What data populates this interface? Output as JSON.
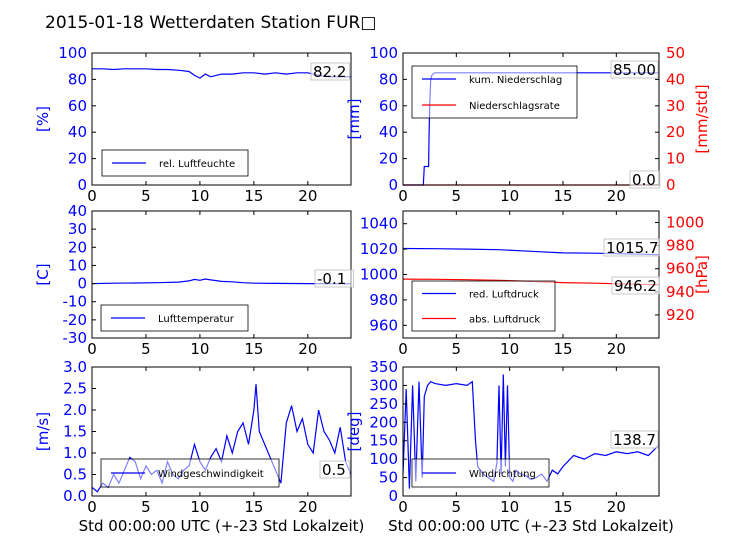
{
  "figure_title": "2015-01-18 Wetterdaten Station FUR□",
  "colors": {
    "primary": "#0000ff",
    "secondary": "#ff0000",
    "axis": "#000000"
  },
  "chart_data": [
    {
      "id": "humidity",
      "type": "line",
      "x_ticks": [
        0,
        5,
        10,
        15,
        20
      ],
      "xlim": [
        0,
        24
      ],
      "ylabel": "[%]",
      "ylim": [
        0,
        100
      ],
      "y_ticks": [
        0,
        20,
        40,
        60,
        80,
        100
      ],
      "annotation": "82.2",
      "legend": {
        "position": "lower-left",
        "entries": [
          "rel. Luftfeuchte"
        ]
      },
      "series": [
        {
          "name": "rel. Luftfeuchte",
          "color": "#0000ff",
          "axis": "left",
          "x": [
            0,
            1,
            2,
            3,
            4,
            5,
            6,
            7,
            8,
            9,
            9.5,
            10,
            10.5,
            11,
            11.5,
            12,
            13,
            14,
            15,
            16,
            17,
            18,
            19,
            20,
            21,
            22,
            23,
            24
          ],
          "y": [
            88,
            88,
            87.5,
            88,
            88,
            88,
            87.5,
            87.5,
            87,
            86,
            83,
            81,
            84,
            82,
            83,
            84,
            84,
            85,
            85,
            84,
            85,
            84,
            85,
            85,
            83,
            82,
            82,
            82
          ]
        }
      ]
    },
    {
      "id": "precipitation",
      "type": "line",
      "x_ticks": [
        0,
        5,
        10,
        15,
        20
      ],
      "xlim": [
        0,
        24
      ],
      "ylabel": "[mm]",
      "ylim": [
        0,
        100
      ],
      "y_ticks": [
        0,
        20,
        40,
        60,
        80,
        100
      ],
      "ylabel_right": "[mm/std]",
      "ylim_right": [
        0,
        50
      ],
      "y_ticks_right": [
        0,
        10,
        20,
        30,
        40,
        50
      ],
      "annotations": [
        "85.00",
        "0.0"
      ],
      "legend": {
        "position": "upper-left",
        "entries": [
          "kum. Niederschlag",
          "Niederschlagsrate"
        ]
      },
      "series": [
        {
          "name": "kum. Niederschlag",
          "color": "#0000ff",
          "axis": "left",
          "x": [
            0,
            1.9,
            2.0,
            2.4,
            2.45,
            2.5,
            2.6,
            2.7,
            2.8,
            3,
            5,
            10,
            15,
            20,
            24
          ],
          "y": [
            0,
            0,
            14,
            14,
            40,
            60,
            80,
            83,
            84,
            85,
            85,
            85,
            85,
            85,
            85
          ]
        },
        {
          "name": "Niederschlagsrate",
          "color": "#ff0000",
          "axis": "right",
          "x": [
            0,
            24
          ],
          "y": [
            0,
            0
          ]
        }
      ]
    },
    {
      "id": "temperature",
      "type": "line",
      "x_ticks": [
        0,
        5,
        10,
        15,
        20
      ],
      "xlim": [
        0,
        24
      ],
      "ylabel": "[C]",
      "ylim": [
        -30,
        40
      ],
      "y_ticks": [
        -30,
        -20,
        -10,
        0,
        10,
        20,
        30,
        40
      ],
      "annotation": "-0.1",
      "legend": {
        "position": "lower-left",
        "entries": [
          "Lufttemperatur"
        ]
      },
      "series": [
        {
          "name": "Lufttemperatur",
          "color": "#0000ff",
          "axis": "left",
          "x": [
            0,
            2,
            4,
            6,
            8,
            9,
            9.5,
            10,
            10.5,
            11,
            12,
            13,
            14,
            15,
            17,
            20,
            24
          ],
          "y": [
            0,
            0.2,
            0.3,
            0.5,
            0.8,
            1.5,
            2.3,
            1.8,
            2.5,
            2.0,
            1.2,
            1.0,
            0.5,
            0.2,
            0.1,
            0,
            -0.1
          ]
        }
      ]
    },
    {
      "id": "pressure",
      "type": "line",
      "x_ticks": [
        0,
        5,
        10,
        15,
        20
      ],
      "xlim": [
        0,
        24
      ],
      "ylim": [
        950,
        1050
      ],
      "y_ticks": [
        960,
        980,
        1000,
        1020,
        1040
      ],
      "ylabel_right": "[hPa]",
      "ylim_right": [
        900,
        1010
      ],
      "y_ticks_right": [
        920,
        940,
        960,
        980,
        1000
      ],
      "annotations": [
        "1015.7",
        "946.2"
      ],
      "legend": {
        "position": "lower-left",
        "entries": [
          "red. Luftdruck",
          "abs. Luftdruck"
        ]
      },
      "series": [
        {
          "name": "red. Luftdruck",
          "color": "#0000ff",
          "axis": "left",
          "x": [
            0,
            3,
            6,
            9,
            12,
            15,
            18,
            21,
            24
          ],
          "y": [
            1020.5,
            1020.3,
            1020,
            1019.5,
            1018.3,
            1017,
            1016.8,
            1016.2,
            1015.7
          ]
        },
        {
          "name": "abs. Luftdruck",
          "color": "#ff0000",
          "axis": "right",
          "x": [
            0,
            3,
            6,
            9,
            12,
            15,
            18,
            21,
            24
          ],
          "y": [
            951,
            950.8,
            950.5,
            950,
            949,
            948,
            947.5,
            946.8,
            946.2
          ]
        }
      ]
    },
    {
      "id": "wind_speed",
      "type": "line",
      "x_ticks": [
        0,
        5,
        10,
        15,
        20
      ],
      "xlim": [
        0,
        24
      ],
      "xlabel": "Std 00:00:00 UTC (+-23 Std Lokalzeit)",
      "ylabel": "[m/s]",
      "ylim": [
        0,
        3.0
      ],
      "y_ticks": [
        "0.0",
        "0.5",
        "1.0",
        "1.5",
        "2.0",
        "2.5",
        "3.0"
      ],
      "annotation": "0.5",
      "legend": {
        "position": "lower-left",
        "entries": [
          "Windgeschwindigkeit"
        ]
      },
      "series": [
        {
          "name": "Windgeschwindigkeit",
          "color": "#0000ff",
          "axis": "left",
          "x": [
            0,
            0.5,
            1,
            1.5,
            2,
            2.5,
            3,
            3.5,
            4,
            4.5,
            5,
            5.5,
            6,
            6.5,
            7,
            7.5,
            8,
            8.5,
            9,
            9.5,
            10,
            10.5,
            11,
            11.5,
            12,
            12.5,
            13,
            13.5,
            14,
            14.5,
            15,
            15.2,
            15.5,
            16,
            16.5,
            17,
            17.5,
            18,
            18.5,
            19,
            19.5,
            20,
            20.5,
            21,
            21.5,
            22,
            22.5,
            23,
            23.5,
            24
          ],
          "y": [
            0.2,
            0.1,
            0.3,
            0.2,
            0.5,
            0.3,
            0.6,
            0.9,
            0.8,
            0.4,
            0.7,
            0.5,
            0.6,
            0.3,
            0.8,
            0.5,
            0.4,
            0.6,
            0.7,
            1.2,
            0.8,
            0.6,
            0.9,
            1.1,
            0.8,
            1.4,
            1.0,
            1.5,
            1.7,
            1.2,
            2.0,
            2.6,
            1.5,
            1.2,
            0.9,
            0.6,
            0.3,
            1.7,
            2.1,
            1.5,
            1.8,
            1.2,
            1.0,
            2.0,
            1.5,
            1.3,
            1.0,
            1.6,
            0.8,
            0.5
          ]
        }
      ]
    },
    {
      "id": "wind_direction",
      "type": "line",
      "x_ticks": [
        0,
        5,
        10,
        15,
        20
      ],
      "xlim": [
        0,
        24
      ],
      "xlabel": "Std 00:00:00 UTC (+-23 Std Lokalzeit)",
      "ylabel": "[deg]",
      "ylim": [
        0,
        350
      ],
      "y_ticks": [
        0,
        50,
        100,
        150,
        200,
        250,
        300,
        350
      ],
      "annotation": "138.7",
      "legend": {
        "position": "lower-left",
        "entries": [
          "Windrichtung"
        ]
      },
      "series": [
        {
          "name": "Windrichtung",
          "color": "#0000ff",
          "axis": "left",
          "x": [
            0,
            0.3,
            0.6,
            0.9,
            1.2,
            1.5,
            1.8,
            2.0,
            2.3,
            2.6,
            3,
            4,
            5,
            6,
            6.5,
            6.8,
            7,
            7.5,
            8,
            8.5,
            8.8,
            9,
            9.2,
            9.4,
            9.6,
            9.8,
            10,
            10.3,
            10.6,
            11,
            11.5,
            12,
            12.5,
            13,
            13.5,
            14,
            14.5,
            15,
            16,
            17,
            18,
            19,
            20,
            21,
            22,
            23,
            24
          ],
          "y": [
            60,
            290,
            20,
            300,
            40,
            310,
            50,
            270,
            300,
            310,
            305,
            300,
            305,
            300,
            310,
            150,
            80,
            60,
            50,
            40,
            90,
            300,
            60,
            330,
            80,
            300,
            50,
            40,
            70,
            60,
            55,
            45,
            50,
            60,
            40,
            70,
            60,
            80,
            110,
            100,
            115,
            110,
            120,
            115,
            120,
            110,
            138.7
          ]
        }
      ]
    }
  ]
}
